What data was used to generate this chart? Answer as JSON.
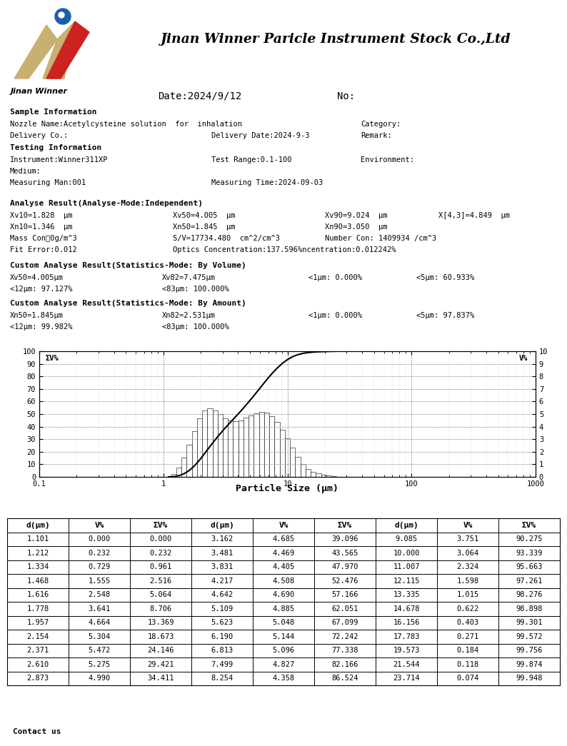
{
  "company_name": "Jinan Winner Paricle Instrument Stock Co.,Ltd",
  "brand_name": "Jinan Winner",
  "date": "Date:2024/9/12",
  "no": "No:",
  "bg_color": "#ffffff",
  "section_bg": "#c8c8c8",
  "sample_info": {
    "label": "Sample Information",
    "line1_left": "Nozzle Name:Acetylcysteine solution  for  inhalation",
    "line1_mid": "Category:",
    "line2_left": "Delivery Co.:",
    "line2_mid": "Delivery Date:2024-9-3",
    "line2_right": "Remark:"
  },
  "testing_info": {
    "label": "Testing Information",
    "line1_left": "Instrument:Winner311XP",
    "line1_mid": "Test Range:0.1-100",
    "line1_right": "Environment:",
    "line2": "Medium:",
    "line3_left": "Measuring Man:001",
    "line3_mid": "Measuring Time:2024-09-03"
  },
  "analyse_result": {
    "label": "Analyse Result(Analyse-Mode:Independent)",
    "row1": [
      "Xv10=1.828  μm",
      "Xv50=4.005  μm",
      "Xv90=9.024  μm",
      "X[4,3]=4.849  μm"
    ],
    "row2": [
      "Xn10=1.346  μm",
      "Xn50=1.845  μm",
      "Xn90=3.050  μm"
    ],
    "row3": [
      "Mass Con：0g/m^3",
      "S/V=17734.480  cm^2/cm^3",
      "Number Con: 1409934 /cm^3"
    ],
    "row4": [
      "Fit Error:0.012",
      "Optics Concentration:137.596%ncentration:0.012242%"
    ]
  },
  "custom_volume": {
    "label": "Custom Analyse Result(Statistics-Mode: By Volume)",
    "row1": [
      "Xv50=4.005μm",
      "Xv82=7.475μm",
      "<1μm: 0.000%",
      "<5μm: 60.933%"
    ],
    "row2": [
      "<12μm: 97.127%",
      "<83μm: 100.000%"
    ]
  },
  "custom_amount": {
    "label": "Custom Analyse Result(Statistics-Mode: By Amount)",
    "row1": [
      "Xn50=1.845μm",
      "Xn82=2.531μm",
      "<1μm: 0.000%",
      "<5μm: 97.837%"
    ],
    "row2": [
      "<12μm: 99.982%",
      "<83μm: 100.000%"
    ]
  },
  "chart": {
    "bar_sizes": [
      1.101,
      1.212,
      1.334,
      1.468,
      1.616,
      1.778,
      1.957,
      2.154,
      2.371,
      2.61,
      2.873,
      3.162,
      3.481,
      3.831,
      4.217,
      4.642,
      5.109,
      5.623,
      6.19,
      6.813,
      7.499,
      8.254,
      9.085,
      10.0,
      11.007,
      12.115,
      13.335,
      14.678,
      16.156,
      17.783,
      19.573,
      21.544,
      23.714
    ],
    "bar_vp": [
      0.0,
      0.232,
      0.729,
      1.555,
      2.548,
      3.641,
      4.664,
      5.304,
      5.472,
      5.275,
      4.99,
      4.685,
      4.469,
      4.405,
      4.508,
      4.69,
      4.885,
      5.048,
      5.144,
      5.096,
      4.827,
      4.358,
      3.751,
      3.064,
      2.324,
      1.598,
      1.015,
      0.622,
      0.403,
      0.271,
      0.184,
      0.118,
      0.074
    ],
    "cumulative": [
      0.0,
      0.232,
      0.961,
      2.516,
      5.064,
      8.705,
      13.369,
      18.673,
      24.146,
      29.421,
      34.411,
      39.096,
      43.565,
      47.97,
      52.476,
      57.166,
      62.051,
      67.099,
      72.242,
      77.338,
      82.166,
      86.524,
      90.275,
      93.339,
      95.663,
      97.261,
      98.276,
      98.898,
      99.301,
      99.572,
      99.756,
      99.874,
      99.948
    ],
    "xlabel": "Particle Size (μm)",
    "ylabel_left": "ΣV%",
    "ylabel_right": "V%"
  },
  "table": {
    "headers": [
      "d(μm)",
      "V%",
      "ΣV%",
      "d(μm)",
      "V%",
      "ΣV%",
      "d(μm)",
      "V%",
      "ΣV%"
    ],
    "rows": [
      [
        1.101,
        0.0,
        0.0,
        3.162,
        4.685,
        39.096,
        9.085,
        3.751,
        90.275
      ],
      [
        1.212,
        0.232,
        0.232,
        3.481,
        4.469,
        43.565,
        10.0,
        3.064,
        93.339
      ],
      [
        1.334,
        0.729,
        0.961,
        3.831,
        4.405,
        47.97,
        11.007,
        2.324,
        95.663
      ],
      [
        1.468,
        1.555,
        2.516,
        4.217,
        4.508,
        52.476,
        12.115,
        1.598,
        97.261
      ],
      [
        1.616,
        2.548,
        5.064,
        4.642,
        4.69,
        57.166,
        13.335,
        1.015,
        98.276
      ],
      [
        1.778,
        3.641,
        8.706,
        5.109,
        4.885,
        62.051,
        14.678,
        0.622,
        98.898
      ],
      [
        1.957,
        4.664,
        13.369,
        5.623,
        5.048,
        67.099,
        16.156,
        0.403,
        99.301
      ],
      [
        2.154,
        5.304,
        18.673,
        6.19,
        5.144,
        72.242,
        17.783,
        0.271,
        99.572
      ],
      [
        2.371,
        5.472,
        24.146,
        6.813,
        5.096,
        77.338,
        19.573,
        0.184,
        99.756
      ],
      [
        2.61,
        5.275,
        29.421,
        7.499,
        4.827,
        82.166,
        21.544,
        0.118,
        99.874
      ],
      [
        2.873,
        4.99,
        34.411,
        8.254,
        4.358,
        86.524,
        23.714,
        0.074,
        99.948
      ]
    ]
  },
  "footer": "Contact us",
  "logo": {
    "circle_color": "#1a5fa8",
    "left_color": "#c8a060",
    "right_color": "#cc2222"
  }
}
